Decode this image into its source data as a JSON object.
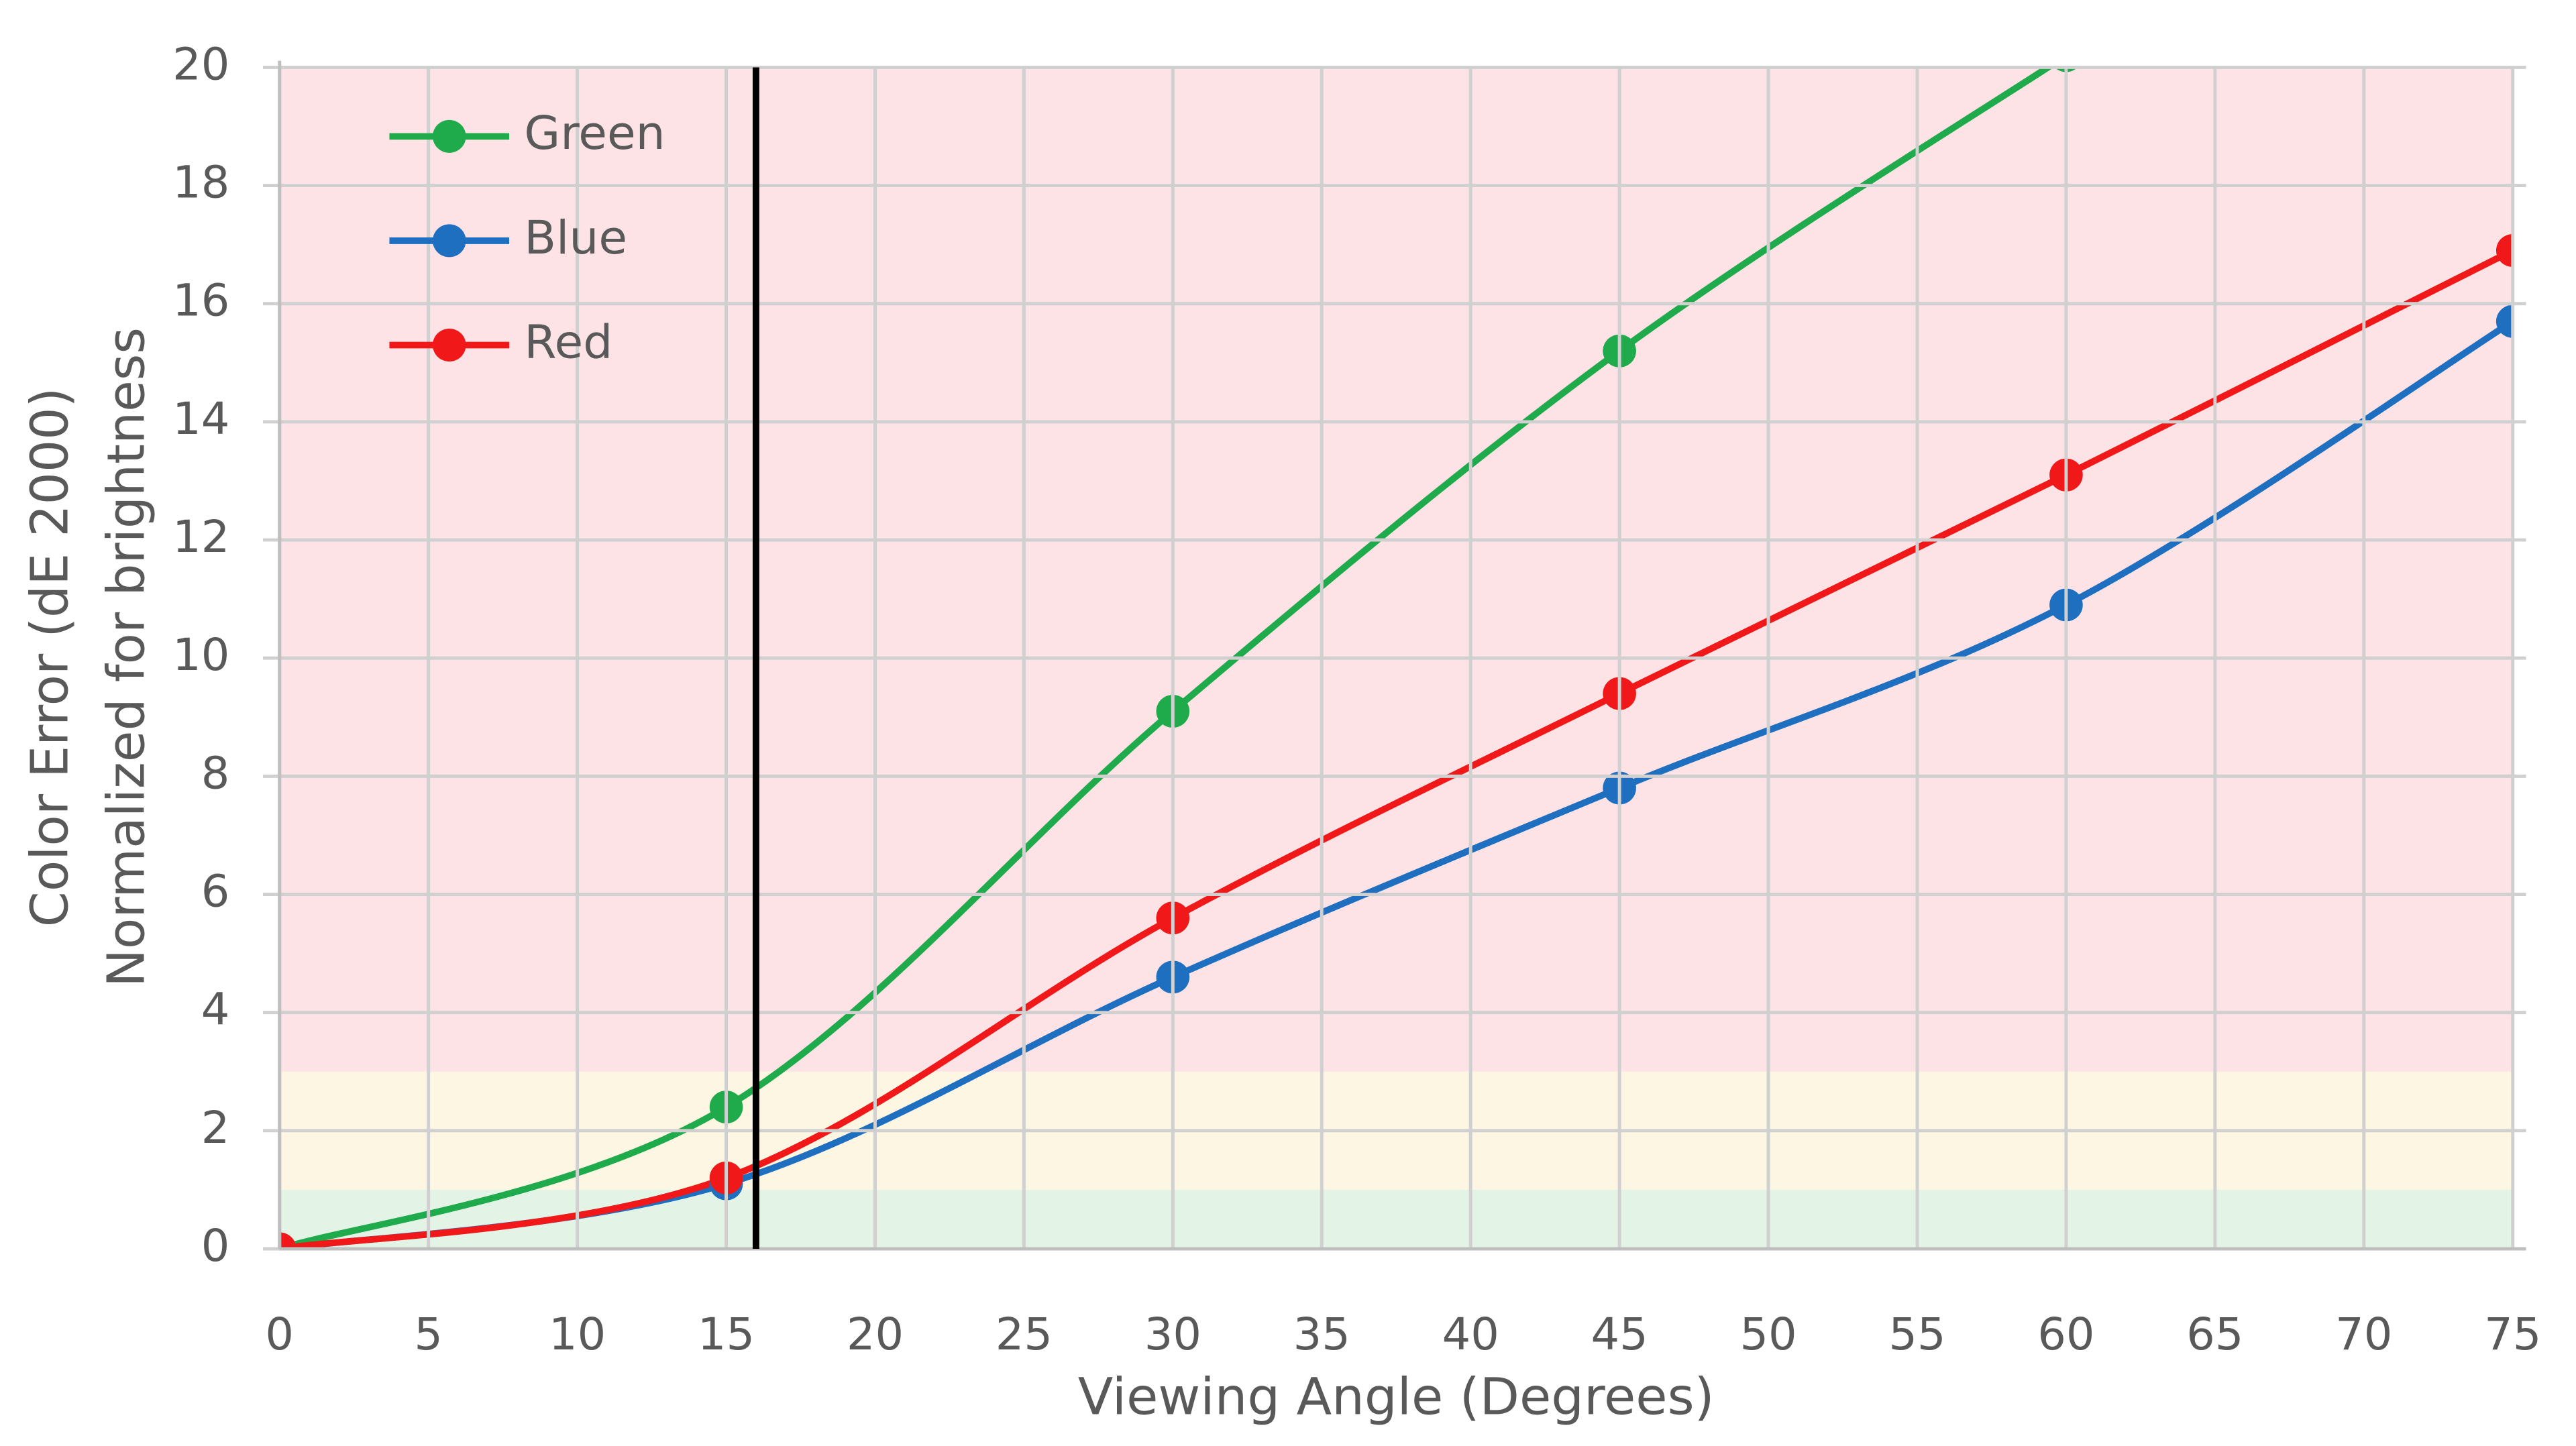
{
  "chart_data": {
    "type": "line",
    "x_label": "Viewing Angle (Degrees)",
    "y_label": [
      "Color Error (dE 2000)",
      "Normalized for brightness"
    ],
    "x": [
      0,
      15,
      30,
      45,
      60,
      75
    ],
    "series": [
      {
        "name": "Green",
        "color": "#1faa4b",
        "values": [
          0,
          2.4,
          9.1,
          15.2,
          20.2,
          null
        ]
      },
      {
        "name": "Blue",
        "color": "#1f6fc1",
        "values": [
          0,
          1.1,
          4.6,
          7.8,
          10.9,
          15.7
        ]
      },
      {
        "name": "Red",
        "color": "#f01818",
        "values": [
          0,
          1.2,
          5.6,
          9.4,
          13.1,
          16.9
        ]
      }
    ],
    "bands": [
      {
        "from": 0,
        "to": 1,
        "color": "#e3f4e7"
      },
      {
        "from": 1,
        "to": 3,
        "color": "#fdf6e2"
      },
      {
        "from": 3,
        "to": 20,
        "color": "#fde3e5"
      }
    ],
    "vline": {
      "x": 16,
      "color": "#000000"
    },
    "xlim": [
      0,
      75
    ],
    "xticks": [
      0,
      5,
      10,
      15,
      20,
      25,
      30,
      35,
      40,
      45,
      50,
      55,
      60,
      65,
      70,
      75
    ],
    "ylim": [
      0,
      20
    ],
    "yticks": [
      0,
      2,
      4,
      6,
      8,
      10,
      12,
      14,
      16,
      18,
      20
    ],
    "grid": true,
    "smooth": true,
    "legend": "top-left"
  }
}
